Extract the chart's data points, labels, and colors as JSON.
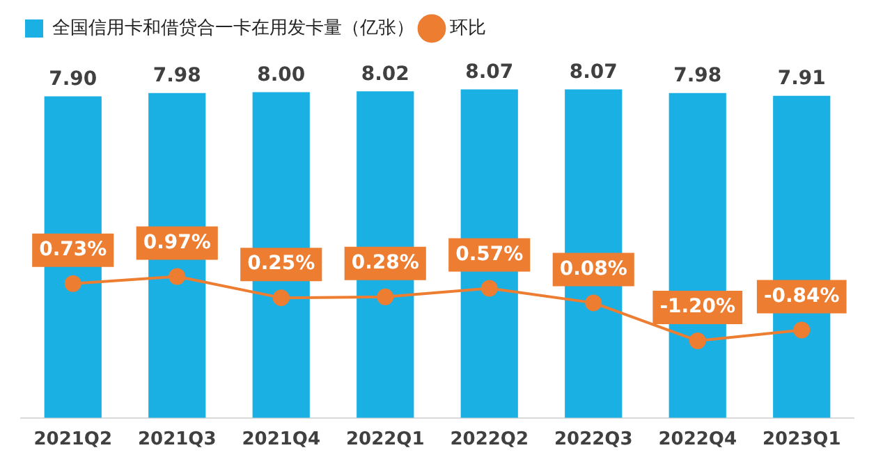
{
  "chart_data": {
    "type": "bar",
    "categories": [
      "2021Q2",
      "2021Q3",
      "2021Q4",
      "2022Q1",
      "2022Q2",
      "2022Q3",
      "2022Q4",
      "2023Q1"
    ],
    "series": [
      {
        "name": "全国信用卡和借贷合一卡在用发卡量（亿张）",
        "color": "#1bb0e3",
        "values": [
          7.9,
          7.98,
          8.0,
          8.02,
          8.07,
          8.07,
          7.98,
          7.91
        ],
        "value_labels": [
          "7.90",
          "7.98",
          "8.00",
          "8.02",
          "8.07",
          "8.07",
          "7.98",
          "7.91"
        ]
      },
      {
        "name": "环比",
        "type": "line",
        "axis": "y2",
        "color": "#ed7d31",
        "values": [
          0.73,
          0.97,
          0.25,
          0.28,
          0.57,
          0.08,
          -1.2,
          -0.84
        ],
        "value_labels": [
          "0.73%",
          "0.97%",
          "0.25%",
          "0.28%",
          "0.57%",
          "0.08%",
          "-1.20%",
          "-0.84%"
        ]
      }
    ],
    "tick_labels": "x",
    "grid": false,
    "legend": "top left",
    "marker": "circle",
    "line_style": "solid"
  }
}
